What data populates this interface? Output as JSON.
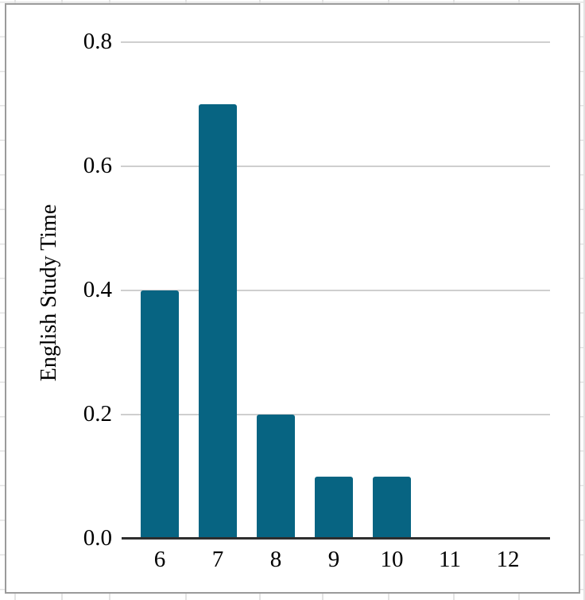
{
  "chart_data": {
    "type": "bar",
    "categories": [
      "6",
      "7",
      "8",
      "9",
      "10",
      "11",
      "12"
    ],
    "values": [
      0.4,
      0.7,
      0.2,
      0.1,
      0.1,
      0,
      0
    ],
    "title": "",
    "xlabel": "",
    "ylabel": "English Study Time",
    "ylim": [
      0,
      0.8
    ],
    "yticks": [
      0,
      0.2,
      0.4,
      0.6,
      0.8
    ],
    "ytick_labels": [
      "0.0",
      "0.2",
      "0.4",
      "0.6",
      "0.8"
    ],
    "xtick_labels": [
      "6",
      "7",
      "8",
      "9",
      "10",
      "11",
      "12"
    ],
    "legend_position": "none",
    "grid": "horizontal"
  },
  "colors": {
    "bar": "#076482",
    "axis_line": "#2e2e2e",
    "gridline": "#cfcfcf",
    "panel_border": "#9b9b9b",
    "sheet_grid": "#e3e3e3",
    "text": "#000000"
  }
}
